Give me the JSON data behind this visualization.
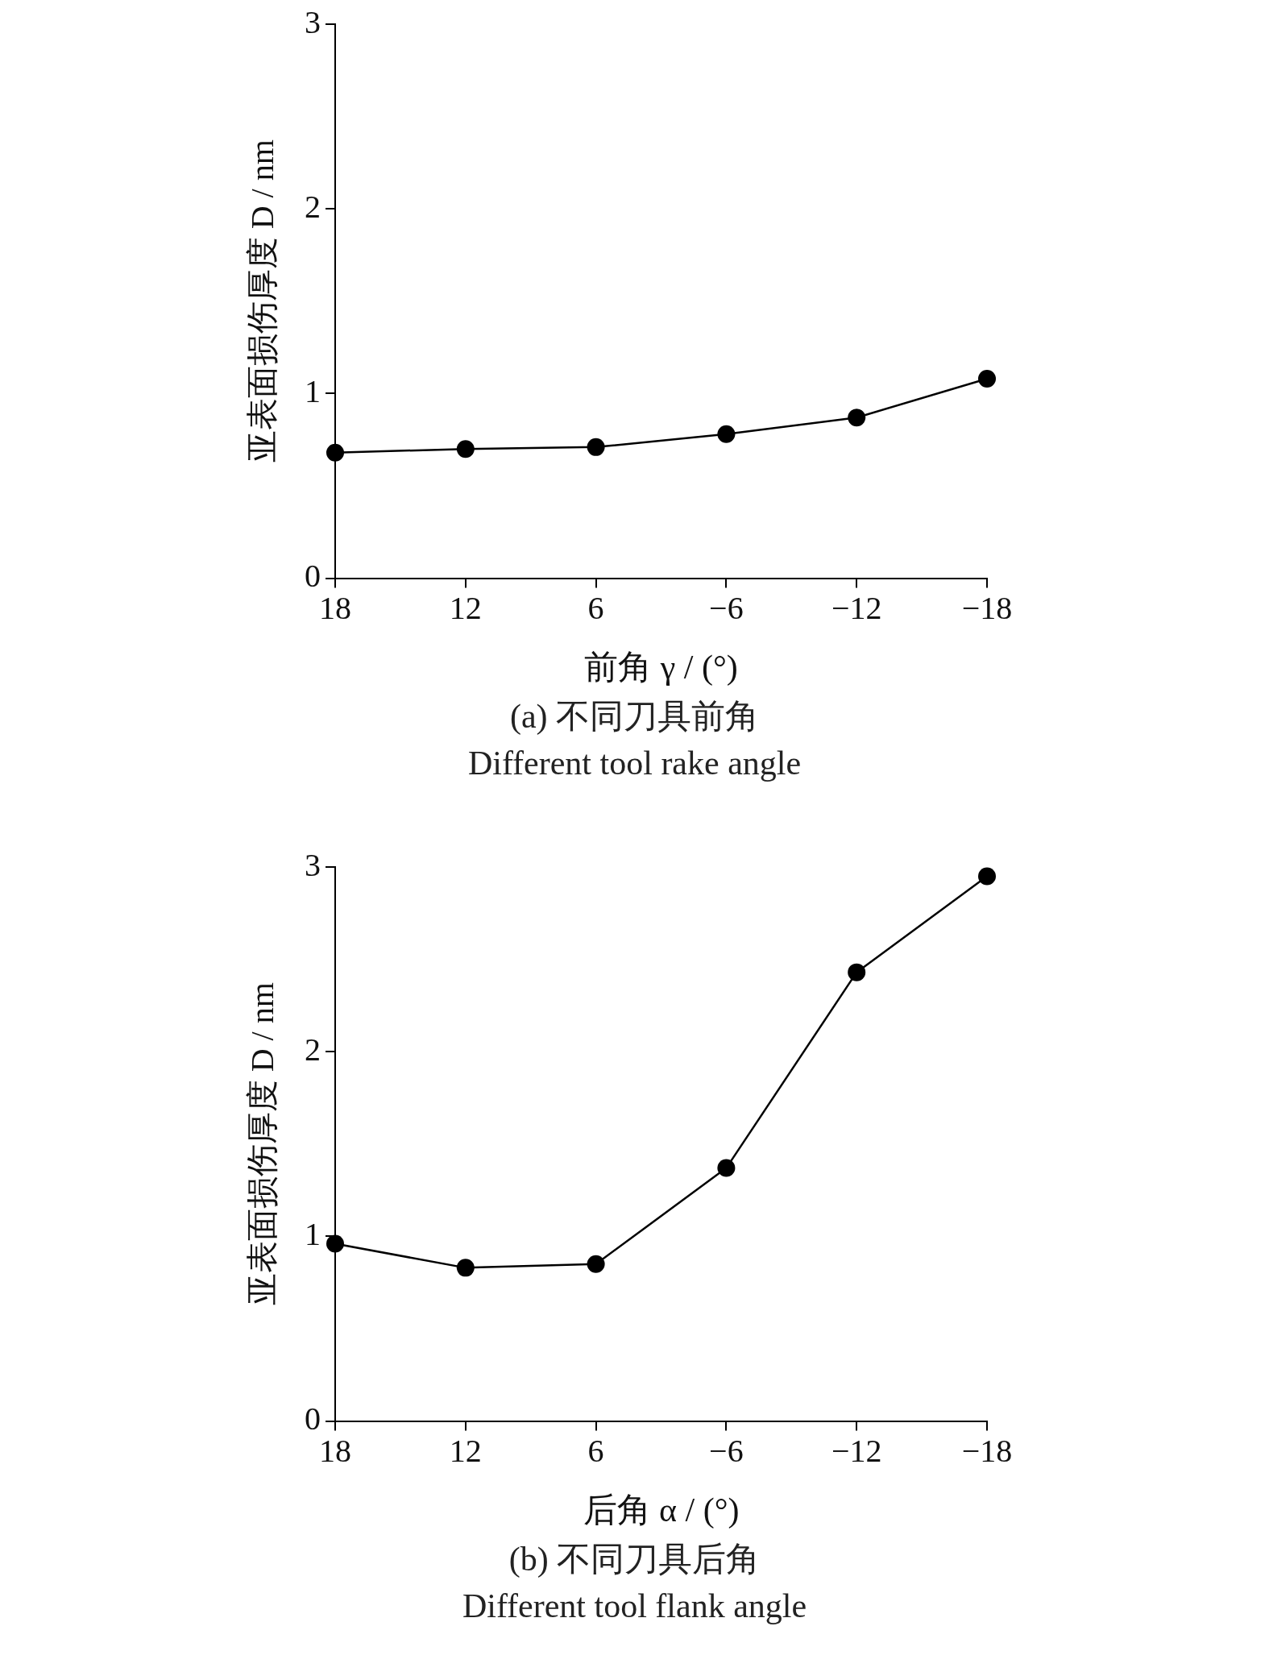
{
  "chart_data": [
    {
      "type": "line",
      "title": "(a) 不同刀具前角",
      "subtitle": "Different tool rake angle",
      "xlabel": "前角 γ / (°)",
      "ylabel": "亚表面损伤厚度 D / nm",
      "categories": [
        "18",
        "12",
        "6",
        "−6",
        "−12",
        "−18"
      ],
      "series": [
        {
          "color": "#000000",
          "values": [
            0.68,
            0.7,
            0.71,
            0.78,
            0.87,
            1.08
          ]
        }
      ],
      "ylim": [
        0,
        3
      ],
      "yticks": [
        0,
        1,
        2,
        3
      ],
      "grid": false,
      "legend": false,
      "marker": "circle",
      "line_style": "solid"
    },
    {
      "type": "line",
      "title": "(b) 不同刀具后角",
      "subtitle": "Different tool flank angle",
      "xlabel": "后角 α / (°)",
      "ylabel": "亚表面损伤厚度 D / nm",
      "categories": [
        "18",
        "12",
        "6",
        "−6",
        "−12",
        "−18"
      ],
      "series": [
        {
          "color": "#000000",
          "values": [
            0.96,
            0.83,
            0.85,
            1.37,
            2.43,
            2.95
          ]
        }
      ],
      "ylim": [
        0,
        3
      ],
      "yticks": [
        0,
        1,
        2,
        3
      ],
      "grid": false,
      "legend": false,
      "marker": "circle",
      "line_style": "solid"
    }
  ]
}
